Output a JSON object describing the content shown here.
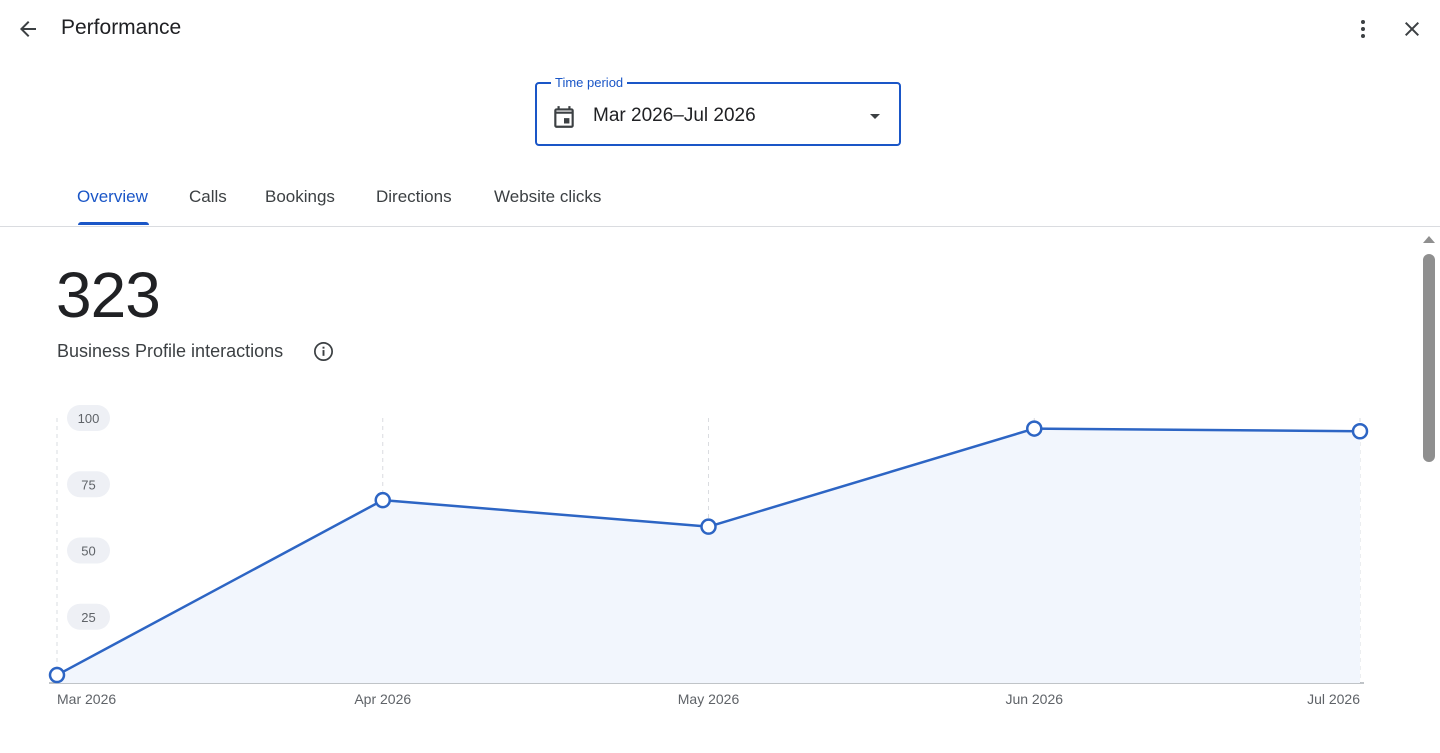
{
  "header": {
    "title": "Performance",
    "back_icon": "arrow-back-icon",
    "more_icon": "more-vert-icon",
    "close_icon": "close-icon"
  },
  "time_period": {
    "label": "Time period",
    "value": "Mar 2026–Jul 2026",
    "icon": "calendar-icon"
  },
  "tabs": [
    {
      "label": "Overview",
      "active": true
    },
    {
      "label": "Calls",
      "active": false
    },
    {
      "label": "Bookings",
      "active": false
    },
    {
      "label": "Directions",
      "active": false
    },
    {
      "label": "Website clicks",
      "active": false
    }
  ],
  "metric": {
    "value": "323",
    "label": "Business Profile interactions"
  },
  "colors": {
    "accent": "#1a56c7",
    "line": "#2d65c4",
    "fill": "#f2f6fd",
    "pill": "#eef0f5"
  },
  "chart_data": {
    "type": "line",
    "categories": [
      "Mar 2026",
      "Apr 2026",
      "May 2026",
      "Jun 2026",
      "Jul 2026"
    ],
    "values": [
      3,
      69,
      59,
      96,
      95
    ],
    "yticks": [
      25,
      50,
      75,
      100
    ],
    "ylim": [
      0,
      100
    ],
    "grid": "vertical dashed"
  }
}
